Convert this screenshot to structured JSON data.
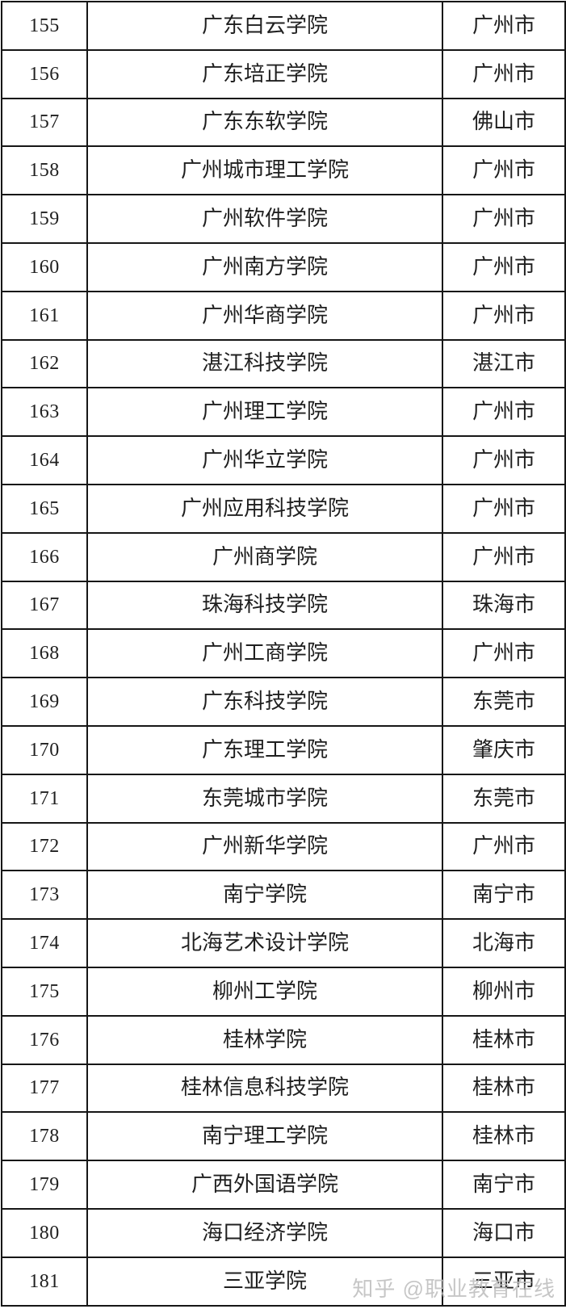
{
  "page": {
    "background_color": "#ffffff",
    "border_color": "#161616",
    "text_color": "#1f1f1f"
  },
  "table": {
    "columns": [
      "number",
      "college_name",
      "city"
    ],
    "rows": [
      {
        "no": "155",
        "name": "广东白云学院",
        "city": "广州市"
      },
      {
        "no": "156",
        "name": "广东培正学院",
        "city": "广州市"
      },
      {
        "no": "157",
        "name": "广东东软学院",
        "city": "佛山市"
      },
      {
        "no": "158",
        "name": "广州城市理工学院",
        "city": "广州市"
      },
      {
        "no": "159",
        "name": "广州软件学院",
        "city": "广州市"
      },
      {
        "no": "160",
        "name": "广州南方学院",
        "city": "广州市"
      },
      {
        "no": "161",
        "name": "广州华商学院",
        "city": "广州市"
      },
      {
        "no": "162",
        "name": "湛江科技学院",
        "city": "湛江市"
      },
      {
        "no": "163",
        "name": "广州理工学院",
        "city": "广州市"
      },
      {
        "no": "164",
        "name": "广州华立学院",
        "city": "广州市"
      },
      {
        "no": "165",
        "name": "广州应用科技学院",
        "city": "广州市"
      },
      {
        "no": "166",
        "name": "广州商学院",
        "city": "广州市"
      },
      {
        "no": "167",
        "name": "珠海科技学院",
        "city": "珠海市"
      },
      {
        "no": "168",
        "name": "广州工商学院",
        "city": "广州市"
      },
      {
        "no": "169",
        "name": "广东科技学院",
        "city": "东莞市"
      },
      {
        "no": "170",
        "name": "广东理工学院",
        "city": "肇庆市"
      },
      {
        "no": "171",
        "name": "东莞城市学院",
        "city": "东莞市"
      },
      {
        "no": "172",
        "name": "广州新华学院",
        "city": "广州市"
      },
      {
        "no": "173",
        "name": "南宁学院",
        "city": "南宁市"
      },
      {
        "no": "174",
        "name": "北海艺术设计学院",
        "city": "北海市"
      },
      {
        "no": "175",
        "name": "柳州工学院",
        "city": "柳州市"
      },
      {
        "no": "176",
        "name": "桂林学院",
        "city": "桂林市"
      },
      {
        "no": "177",
        "name": "桂林信息科技学院",
        "city": "桂林市"
      },
      {
        "no": "178",
        "name": "南宁理工学院",
        "city": "桂林市"
      },
      {
        "no": "179",
        "name": "广西外国语学院",
        "city": "南宁市"
      },
      {
        "no": "180",
        "name": "海口经济学院",
        "city": "海口市"
      },
      {
        "no": "181",
        "name": "三亚学院",
        "city": "三亚市"
      }
    ]
  },
  "watermark": {
    "text": "知乎 @职业教育在线",
    "color": "#bdbdbd"
  }
}
